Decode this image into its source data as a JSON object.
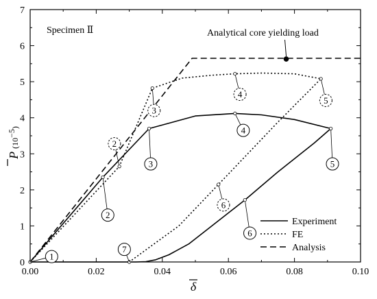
{
  "chart_data": {
    "type": "line",
    "title": "",
    "panel_label": "Specimen Ⅱ",
    "xlabel": "δ",
    "ylabel": "P",
    "ylabel_unit": "(10",
    "ylabel_unit_exp": "−5",
    "ylabel_unit_close": ")",
    "xlim": [
      0.0,
      0.1
    ],
    "ylim": [
      0,
      7
    ],
    "x_ticks": [
      0.0,
      0.02,
      0.04,
      0.06,
      0.08,
      0.1
    ],
    "x_tick_labels": [
      "0.00",
      "0.02",
      "0.04",
      "0.06",
      "0.08",
      "0.10"
    ],
    "y_ticks": [
      0,
      1,
      2,
      3,
      4,
      5,
      6,
      7
    ],
    "y_tick_labels": [
      "0",
      "1",
      "2",
      "3",
      "4",
      "5",
      "6",
      "7"
    ],
    "grid": false,
    "legend_position": "bottom-right",
    "series": [
      {
        "name": "Experiment",
        "style": "solid",
        "x": [
          0.0,
          0.022,
          0.036,
          0.05,
          0.062,
          0.07,
          0.08,
          0.091,
          0.086,
          0.075,
          0.065,
          0.055,
          0.048,
          0.042,
          0.038,
          0.035,
          0.032,
          0.03,
          0.02,
          0.01,
          0.0
        ],
        "y": [
          0.0,
          2.35,
          3.7,
          4.05,
          4.12,
          4.08,
          3.95,
          3.7,
          3.3,
          2.5,
          1.72,
          1.0,
          0.5,
          0.2,
          0.06,
          0.01,
          0.0,
          0.0,
          0.0,
          0.0,
          0.0
        ]
      },
      {
        "name": "FE",
        "style": "dotted",
        "x": [
          0.0,
          0.027,
          0.037,
          0.046,
          0.055,
          0.062,
          0.07,
          0.08,
          0.088,
          0.075,
          0.057,
          0.045,
          0.03
        ],
        "y": [
          0.0,
          2.65,
          4.82,
          5.1,
          5.18,
          5.22,
          5.24,
          5.22,
          5.08,
          3.88,
          2.15,
          1.0,
          0.0
        ]
      },
      {
        "name": "Analysis",
        "style": "dashed",
        "x": [
          0.0,
          0.049,
          0.1
        ],
        "y": [
          0.0,
          5.65,
          5.65
        ]
      }
    ],
    "annotations": [
      {
        "text": "Analytical core yielding load",
        "x": 0.0775,
        "y": 5.63
      }
    ],
    "markers": {
      "experiment": [
        {
          "label": "1",
          "x": 0.0,
          "y": 0.0,
          "label_x": 0.0065,
          "label_y": 0.15
        },
        {
          "label": "2",
          "x": 0.022,
          "y": 2.35,
          "label_x": 0.0235,
          "label_y": 1.3
        },
        {
          "label": "3",
          "x": 0.036,
          "y": 3.7,
          "label_x": 0.0365,
          "label_y": 2.72
        },
        {
          "label": "4",
          "x": 0.062,
          "y": 4.12,
          "label_x": 0.0645,
          "label_y": 3.65
        },
        {
          "label": "5",
          "x": 0.091,
          "y": 3.7,
          "label_x": 0.0915,
          "label_y": 2.72
        },
        {
          "label": "6",
          "x": 0.065,
          "y": 1.72,
          "label_x": 0.0665,
          "label_y": 0.8
        },
        {
          "label": "7",
          "x": 0.03,
          "y": 0.0,
          "label_x": 0.0285,
          "label_y": 0.35
        }
      ],
      "fe": [
        {
          "label": "2",
          "x": 0.027,
          "y": 2.65,
          "label_x": 0.0255,
          "label_y": 3.28
        },
        {
          "label": "3",
          "x": 0.037,
          "y": 4.82,
          "label_x": 0.0375,
          "label_y": 4.2
        },
        {
          "label": "4",
          "x": 0.062,
          "y": 5.22,
          "label_x": 0.0635,
          "label_y": 4.65
        },
        {
          "label": "5",
          "x": 0.088,
          "y": 5.08,
          "label_x": 0.0895,
          "label_y": 4.48
        },
        {
          "label": "6",
          "x": 0.057,
          "y": 2.15,
          "label_x": 0.0585,
          "label_y": 1.58
        }
      ]
    },
    "colors": {
      "line": "#000000",
      "background": "#ffffff"
    }
  }
}
